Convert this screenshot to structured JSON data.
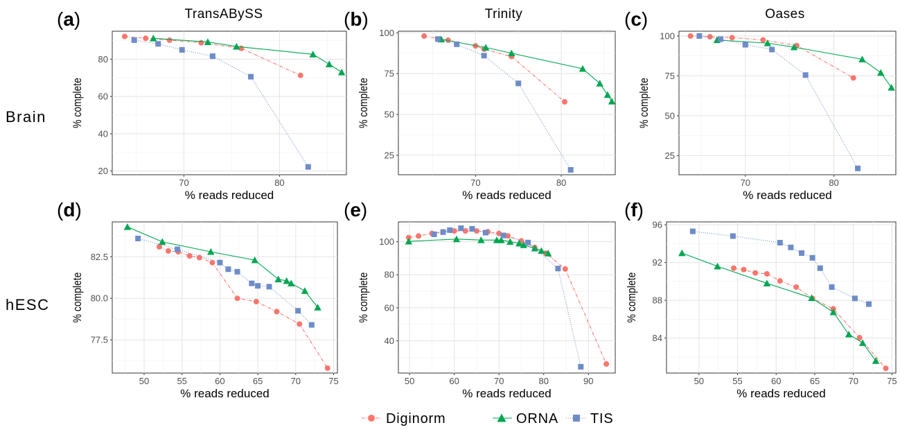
{
  "columns": [
    "TransABySS",
    "Trinity",
    "Oases"
  ],
  "rows": [
    "Brain",
    "hESC"
  ],
  "legend": [
    {
      "label": "Diginorm",
      "color": "#F8766D",
      "shape": "circle"
    },
    {
      "label": "ORNA",
      "color": "#00A651",
      "shape": "triangle"
    },
    {
      "label": "TIS",
      "color": "#6E8CC8",
      "shape": "square"
    }
  ],
  "chart_data": [
    {
      "type": "line",
      "tag": "a",
      "tag_paren_open": "(",
      "tag_paren_close": ")",
      "xlabel": "% reads reduced",
      "ylabel": "% complete",
      "xlim": [
        62.5,
        87
      ],
      "ylim": [
        18,
        95
      ],
      "xticks": [
        70,
        80
      ],
      "yticks": [
        20,
        40,
        60,
        80
      ],
      "series": [
        {
          "name": "Diginorm",
          "points": [
            [
              63.8,
              92.2
            ],
            [
              66.0,
              91.2
            ],
            [
              68.5,
              90.2
            ],
            [
              71.8,
              88.8
            ],
            [
              76.0,
              85.8
            ],
            [
              82.2,
              71.3
            ]
          ]
        },
        {
          "name": "ORNA",
          "points": [
            [
              66.8,
              91.2
            ],
            [
              72.5,
              89.2
            ],
            [
              75.5,
              86.8
            ],
            [
              83.5,
              82.6
            ],
            [
              85.2,
              77.3
            ],
            [
              86.5,
              73.0
            ]
          ]
        },
        {
          "name": "TIS",
          "points": [
            [
              64.8,
              90.2
            ],
            [
              67.3,
              88.2
            ],
            [
              69.8,
              85.0
            ],
            [
              73.0,
              81.6
            ],
            [
              77.0,
              70.6
            ],
            [
              83.0,
              22.2
            ]
          ]
        }
      ]
    },
    {
      "type": "line",
      "tag": "b",
      "tag_paren_open": "(",
      "tag_paren_close": ")",
      "xlabel": "% reads reduced",
      "ylabel": "% complete",
      "xlim": [
        61,
        86.3
      ],
      "ylim": [
        13,
        101
      ],
      "xticks": [
        70,
        80
      ],
      "yticks": [
        25,
        50,
        75,
        100
      ],
      "series": [
        {
          "name": "Diginorm",
          "points": [
            [
              64.0,
              98.0
            ],
            [
              66.8,
              95.5
            ],
            [
              70.0,
              92.0
            ],
            [
              71.0,
              90.0
            ],
            [
              74.2,
              85.5
            ],
            [
              80.4,
              57.7
            ]
          ]
        },
        {
          "name": "ORNA",
          "points": [
            [
              66.0,
              96.0
            ],
            [
              71.2,
              91.0
            ],
            [
              74.2,
              87.5
            ],
            [
              82.5,
              78.0
            ],
            [
              84.5,
              69.0
            ],
            [
              85.4,
              62.0
            ],
            [
              85.9,
              58.0
            ]
          ]
        },
        {
          "name": "TIS",
          "points": [
            [
              65.6,
              96.2
            ],
            [
              67.8,
              93.0
            ],
            [
              71.0,
              86.0
            ],
            [
              75.0,
              69.0
            ],
            [
              81.1,
              16.0
            ]
          ]
        }
      ]
    },
    {
      "type": "line",
      "tag": "c",
      "tag_paren_open": "(",
      "tag_paren_close": ")",
      "xlabel": "% reads reduced",
      "ylabel": "% complete",
      "xlim": [
        62.5,
        87
      ],
      "ylim": [
        13,
        103
      ],
      "xticks": [
        70,
        80
      ],
      "yticks": [
        25,
        50,
        75,
        100
      ],
      "series": [
        {
          "name": "Diginorm",
          "points": [
            [
              63.8,
              100.0
            ],
            [
              66.0,
              99.5
            ],
            [
              68.5,
              99.0
            ],
            [
              72.0,
              97.5
            ],
            [
              75.8,
              94.0
            ],
            [
              82.2,
              73.7
            ]
          ]
        },
        {
          "name": "ORNA",
          "points": [
            [
              66.8,
              97.5
            ],
            [
              72.5,
              95.5
            ],
            [
              75.5,
              93.0
            ],
            [
              83.2,
              85.4
            ],
            [
              85.3,
              77.0
            ],
            [
              86.5,
              67.7
            ]
          ]
        },
        {
          "name": "TIS",
          "points": [
            [
              64.8,
              100.0
            ],
            [
              67.2,
              98.0
            ],
            [
              70.0,
              94.5
            ],
            [
              73.0,
              91.5
            ],
            [
              76.8,
              75.5
            ],
            [
              82.7,
              17.0
            ]
          ]
        }
      ]
    },
    {
      "type": "line",
      "tag": "d",
      "tag_paren_open": "(",
      "tag_paren_close": ")",
      "xlabel": "% reads reduced",
      "ylabel": "% complete",
      "xlim": [
        45.8,
        75.5
      ],
      "ylim": [
        75.5,
        84.6
      ],
      "xticks": [
        50,
        55,
        60,
        65,
        70,
        75
      ],
      "yticks": [
        77.5,
        80.0,
        82.5
      ],
      "series": [
        {
          "name": "Diginorm",
          "points": [
            [
              52.0,
              83.1
            ],
            [
              53.2,
              82.85
            ],
            [
              54.5,
              82.8
            ],
            [
              56.0,
              82.55
            ],
            [
              57.3,
              82.45
            ],
            [
              59.0,
              82.15
            ],
            [
              62.3,
              80.0
            ],
            [
              64.8,
              79.8
            ],
            [
              67.5,
              79.2
            ],
            [
              70.5,
              78.45
            ],
            [
              74.2,
              75.8
            ]
          ]
        },
        {
          "name": "ORNA",
          "points": [
            [
              47.8,
              84.3
            ],
            [
              52.4,
              83.4
            ],
            [
              58.8,
              82.8
            ],
            [
              64.6,
              82.3
            ],
            [
              67.7,
              81.15
            ],
            [
              68.8,
              81.05
            ],
            [
              69.4,
              80.9
            ],
            [
              71.2,
              80.45
            ],
            [
              72.9,
              79.45
            ]
          ]
        },
        {
          "name": "TIS",
          "points": [
            [
              49.2,
              83.6
            ],
            [
              54.4,
              82.95
            ],
            [
              60.0,
              82.15
            ],
            [
              61.1,
              81.75
            ],
            [
              62.3,
              81.6
            ],
            [
              64.2,
              80.9
            ],
            [
              65.0,
              80.75
            ],
            [
              66.5,
              80.7
            ],
            [
              70.3,
              79.25
            ],
            [
              72.1,
              78.4
            ]
          ]
        }
      ]
    },
    {
      "type": "line",
      "tag": "e",
      "tag_paren_open": "(",
      "tag_paren_close": ")",
      "xlabel": "% reads reduced",
      "ylabel": "% complete",
      "xlim": [
        47.5,
        96
      ],
      "ylim": [
        20.5,
        112
      ],
      "xticks": [
        50,
        60,
        70,
        80,
        90
      ],
      "yticks": [
        40,
        60,
        80,
        100
      ],
      "series": [
        {
          "name": "Diginorm",
          "points": [
            [
              49.8,
              102.5
            ],
            [
              52.0,
              103.5
            ],
            [
              55.0,
              105.0
            ],
            [
              57.5,
              106.0
            ],
            [
              60.0,
              106.5
            ],
            [
              62.5,
              106.5
            ],
            [
              65.0,
              106.5
            ],
            [
              67.5,
              106.0
            ],
            [
              70.0,
              105.0
            ],
            [
              72.0,
              103.5
            ],
            [
              75.0,
              100.5
            ],
            [
              78.0,
              96.5
            ],
            [
              80.5,
              93.0
            ],
            [
              84.8,
              83.5
            ],
            [
              94.0,
              26.0
            ]
          ]
        },
        {
          "name": "ORNA",
          "points": [
            [
              49.8,
              100.2
            ],
            [
              60.5,
              101.6
            ],
            [
              66.0,
              101.0
            ],
            [
              69.5,
              101.0
            ],
            [
              70.5,
              101.0
            ],
            [
              72.5,
              100.0
            ],
            [
              74.5,
              99.0
            ],
            [
              75.5,
              98.0
            ],
            [
              78.0,
              96.0
            ],
            [
              79.5,
              94.5
            ],
            [
              81.0,
              93.0
            ]
          ]
        },
        {
          "name": "TIS",
          "points": [
            [
              55.5,
              104.5
            ],
            [
              57.5,
              105.8
            ],
            [
              59.0,
              107.0
            ],
            [
              61.5,
              108.2
            ],
            [
              64.0,
              107.8
            ],
            [
              67.0,
              105.5
            ],
            [
              71.0,
              103.8
            ],
            [
              76.5,
              99.5
            ],
            [
              83.2,
              83.8
            ],
            [
              88.3,
              24.3
            ]
          ]
        }
      ]
    },
    {
      "type": "line",
      "tag": "f",
      "tag_paren_open": "(",
      "tag_paren_close": ")",
      "xlabel": "% reads reduced",
      "ylabel": "% complete",
      "xlim": [
        45.8,
        75.5
      ],
      "ylim": [
        80.3,
        96.3
      ],
      "xticks": [
        50,
        55,
        60,
        65,
        70,
        75
      ],
      "yticks": [
        84,
        88,
        92,
        96
      ],
      "series": [
        {
          "name": "Diginorm",
          "points": [
            [
              54.5,
              91.4
            ],
            [
              55.8,
              91.25
            ],
            [
              57.3,
              90.9
            ],
            [
              58.8,
              90.8
            ],
            [
              60.5,
              90.05
            ],
            [
              62.6,
              89.4
            ],
            [
              64.7,
              88.2
            ],
            [
              67.4,
              87.1
            ],
            [
              70.8,
              84.05
            ],
            [
              74.2,
              80.8
            ]
          ]
        },
        {
          "name": "ORNA",
          "points": [
            [
              47.8,
              93.0
            ],
            [
              52.4,
              91.6
            ],
            [
              58.8,
              89.8
            ],
            [
              64.6,
              88.25
            ],
            [
              67.4,
              86.75
            ],
            [
              69.4,
              84.4
            ],
            [
              71.2,
              83.5
            ],
            [
              72.9,
              81.6
            ]
          ]
        },
        {
          "name": "TIS",
          "points": [
            [
              49.2,
              95.3
            ],
            [
              54.4,
              94.8
            ],
            [
              60.5,
              94.1
            ],
            [
              61.9,
              93.6
            ],
            [
              63.3,
              93.0
            ],
            [
              64.7,
              92.5
            ],
            [
              65.7,
              91.4
            ],
            [
              67.2,
              89.4
            ],
            [
              70.2,
              88.2
            ],
            [
              72.0,
              87.6
            ]
          ]
        }
      ]
    }
  ]
}
